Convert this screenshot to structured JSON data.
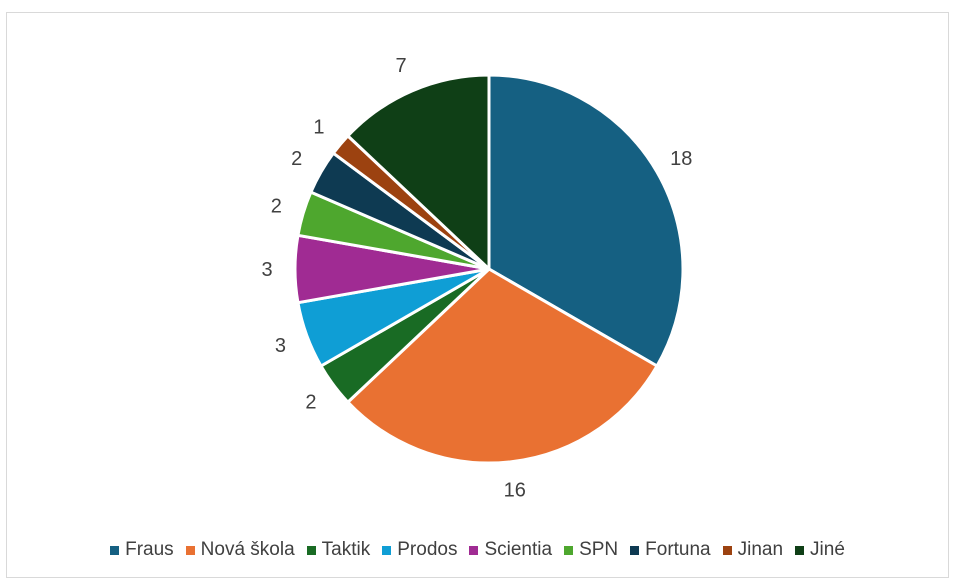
{
  "chart_data": {
    "type": "pie",
    "title": "",
    "categories": [
      "Fraus",
      "Nová škola",
      "Taktik",
      "Prodos",
      "Scientia",
      "SPN",
      "Fortuna",
      "Jinan",
      "Jiné"
    ],
    "values": [
      18,
      16,
      2,
      3,
      3,
      2,
      2,
      1,
      7
    ],
    "colors": [
      "#156082",
      "#e97132",
      "#196b24",
      "#0f9ed5",
      "#a02b93",
      "#4ea72e",
      "#0e3a52",
      "#9c4210",
      "#0f3f16"
    ],
    "data_labels": [
      "18",
      "16",
      "2",
      "3",
      "3",
      "2",
      "2",
      "1",
      "7"
    ],
    "start_angle": "12 o'clock",
    "direction": "clockwise",
    "legend_position": "bottom"
  }
}
